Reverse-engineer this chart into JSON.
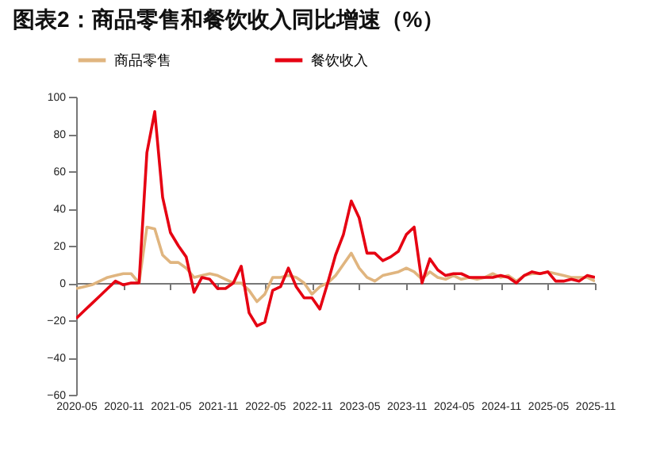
{
  "chart_data": {
    "type": "line",
    "title": "图表2：商品零售和餐饮收入同比增速（%）",
    "categories": [
      "2020-05",
      null,
      null,
      null,
      null,
      null,
      "2020-11",
      null,
      null,
      null,
      null,
      null,
      "2021-05",
      null,
      null,
      null,
      null,
      null,
      "2021-11",
      null,
      null,
      null,
      null,
      null,
      "2022-05",
      null,
      null,
      null,
      null,
      null,
      "2022-11",
      null,
      null,
      null,
      null,
      null,
      "2023-05",
      null,
      null,
      null,
      null,
      null,
      "2023-11",
      null,
      null,
      null,
      null,
      null,
      "2024-05",
      null,
      null,
      null,
      null,
      null,
      "2024-11",
      null,
      null,
      null,
      null,
      null,
      "2025-05",
      null,
      null,
      null,
      null,
      null,
      "2025-11"
    ],
    "series": [
      {
        "name": "商品零售",
        "color": "#e0b57f",
        "values": [
          -3,
          -2,
          -1,
          1,
          3,
          4,
          5,
          5,
          0,
          30,
          29,
          15,
          11,
          11,
          8,
          3,
          4,
          5,
          4,
          2,
          0,
          0,
          -4,
          -10,
          -6,
          3,
          3,
          4,
          3,
          0,
          -6,
          -2,
          0,
          4,
          10,
          16,
          8,
          3,
          1,
          4,
          5,
          6,
          8,
          6,
          2,
          6,
          3,
          2,
          4,
          2,
          3,
          2,
          3,
          5,
          3,
          4,
          1,
          4,
          5,
          5,
          6,
          5,
          4,
          3,
          3,
          3,
          1
        ]
      },
      {
        "name": "餐饮收入",
        "color": "#e60012",
        "values": [
          -19,
          -15,
          -11,
          -7,
          -3,
          1,
          -1,
          0,
          0,
          70,
          92,
          46,
          27,
          20,
          14,
          -5,
          3,
          2,
          -3,
          -3,
          0,
          9,
          -16,
          -23,
          -21,
          -4,
          -2,
          8,
          -2,
          -8,
          -8,
          -14,
          0,
          15,
          26,
          44,
          35,
          16,
          16,
          12,
          14,
          17,
          26,
          30,
          0,
          13,
          7,
          4,
          5,
          5,
          3,
          3,
          3,
          3,
          4,
          3,
          0,
          4,
          6,
          5,
          6,
          1,
          1,
          2,
          1,
          4,
          3
        ]
      }
    ],
    "ylim": [
      -60,
      100
    ],
    "yticks": [
      -60,
      -40,
      -20,
      0,
      20,
      40,
      60,
      80,
      100
    ],
    "legend": "top"
  }
}
